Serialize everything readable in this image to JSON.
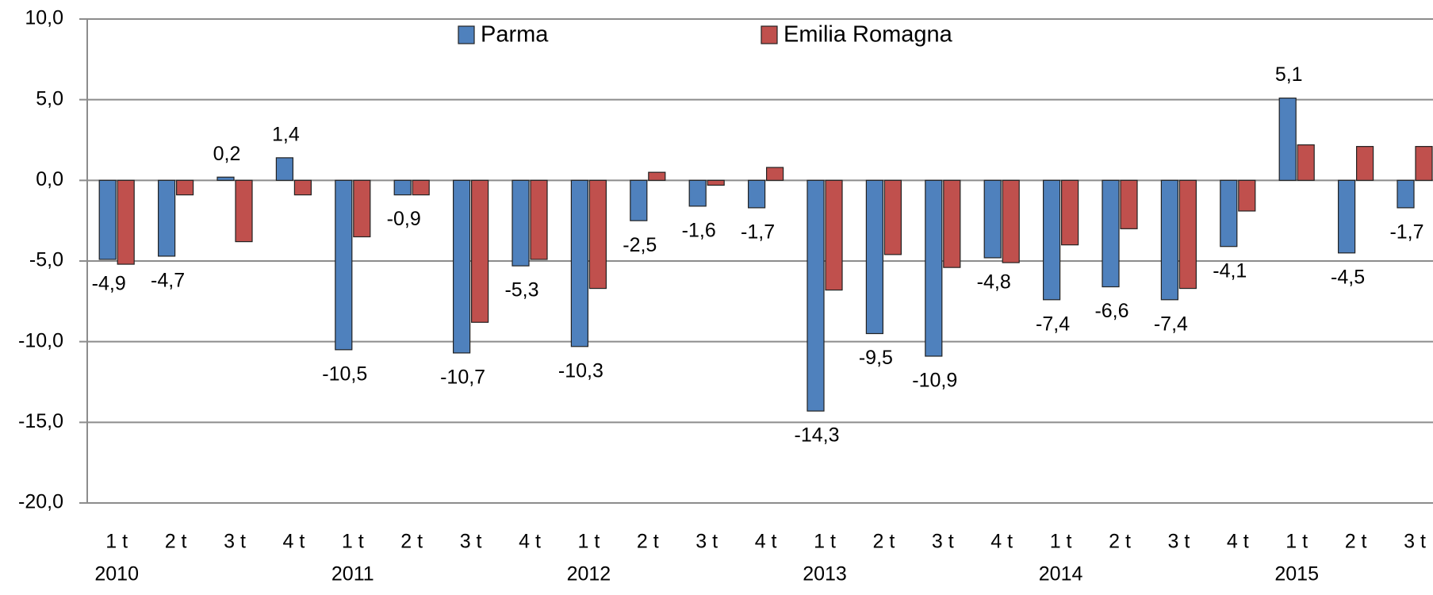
{
  "chart_data": {
    "type": "bar",
    "categories": [
      [
        "1 t",
        "2010"
      ],
      [
        "2 t",
        null
      ],
      [
        "3 t",
        null
      ],
      [
        "4 t",
        null
      ],
      [
        "1 t",
        "2011"
      ],
      [
        "2 t",
        null
      ],
      [
        "3 t",
        null
      ],
      [
        "4 t",
        null
      ],
      [
        "1 t",
        "2012"
      ],
      [
        "2 t",
        null
      ],
      [
        "3 t",
        null
      ],
      [
        "4 t",
        null
      ],
      [
        "1 t",
        "2013"
      ],
      [
        "2 t",
        null
      ],
      [
        "3 t",
        null
      ],
      [
        "4 t",
        null
      ],
      [
        "1 t",
        "2014"
      ],
      [
        "2 t",
        null
      ],
      [
        "3 t",
        null
      ],
      [
        "4 t",
        null
      ],
      [
        "1 t",
        "2015"
      ],
      [
        "2 t",
        null
      ],
      [
        "3 t",
        null
      ]
    ],
    "series": [
      {
        "name": "Parma",
        "color": "#4f81bd",
        "values": [
          -4.9,
          -4.7,
          0.2,
          1.4,
          -10.5,
          -0.9,
          -10.7,
          -5.3,
          -10.3,
          -2.5,
          -1.6,
          -1.7,
          -14.3,
          -9.5,
          -10.9,
          -4.8,
          -7.4,
          -6.6,
          -7.4,
          -4.1,
          5.1,
          -4.5,
          -1.7
        ],
        "value_labels": [
          "-4,9",
          "-4,7",
          "0,2",
          "1,4",
          "-10,5",
          "-0,9",
          "-10,7",
          "-5,3",
          "-10,3",
          "-2,5",
          "-1,6",
          "-1,7",
          "-14,3",
          "-9,5",
          "-10,9",
          "-4,8",
          "-7,4",
          "-6,6",
          "-7,4",
          "-4,1",
          "5,1",
          "-4,5",
          "-1,7"
        ]
      },
      {
        "name": "Emilia Romagna",
        "color": "#c0504d",
        "values": [
          -5.2,
          -0.9,
          -3.8,
          -0.9,
          -3.5,
          -0.9,
          -8.8,
          -4.9,
          -6.7,
          0.5,
          -0.3,
          0.8,
          -6.8,
          -4.6,
          -5.4,
          -5.1,
          -4.0,
          -3.0,
          -6.7,
          -1.9,
          2.2,
          2.1,
          2.1
        ]
      }
    ],
    "ylim": [
      -20,
      10
    ],
    "yticks": [
      {
        "value": -20,
        "label": "-20,0"
      },
      {
        "value": -15,
        "label": "-15,0"
      },
      {
        "value": -10,
        "label": "-10,0"
      },
      {
        "value": -5,
        "label": "-5,0"
      },
      {
        "value": 0,
        "label": "0,0"
      },
      {
        "value": 5,
        "label": "5,0"
      },
      {
        "value": 10,
        "label": "10,0"
      }
    ],
    "grid": true
  }
}
